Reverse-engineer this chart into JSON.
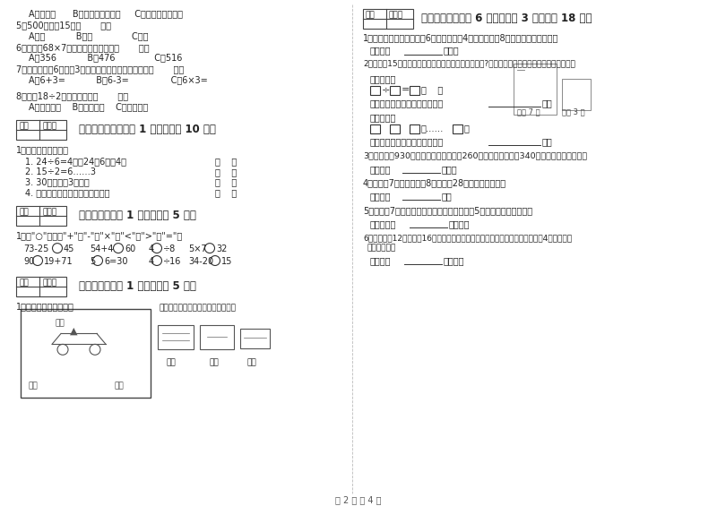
{
  "bg_color": "#ffffff",
  "text_color": "#333333",
  "page_footer": "第 2 页 共 4 页",
  "sec5_title": "五、判断对与错（共 1 大题，共计 10 分）",
  "sec6_title": "六、比一比（共 1 大题，共计 5 分）",
  "sec7_title": "七、连一连（共 1 大题，共计 5 分）",
  "sec8_title": "八、解决问题（共 6 小题，每题 3 分，共计 18 分）"
}
